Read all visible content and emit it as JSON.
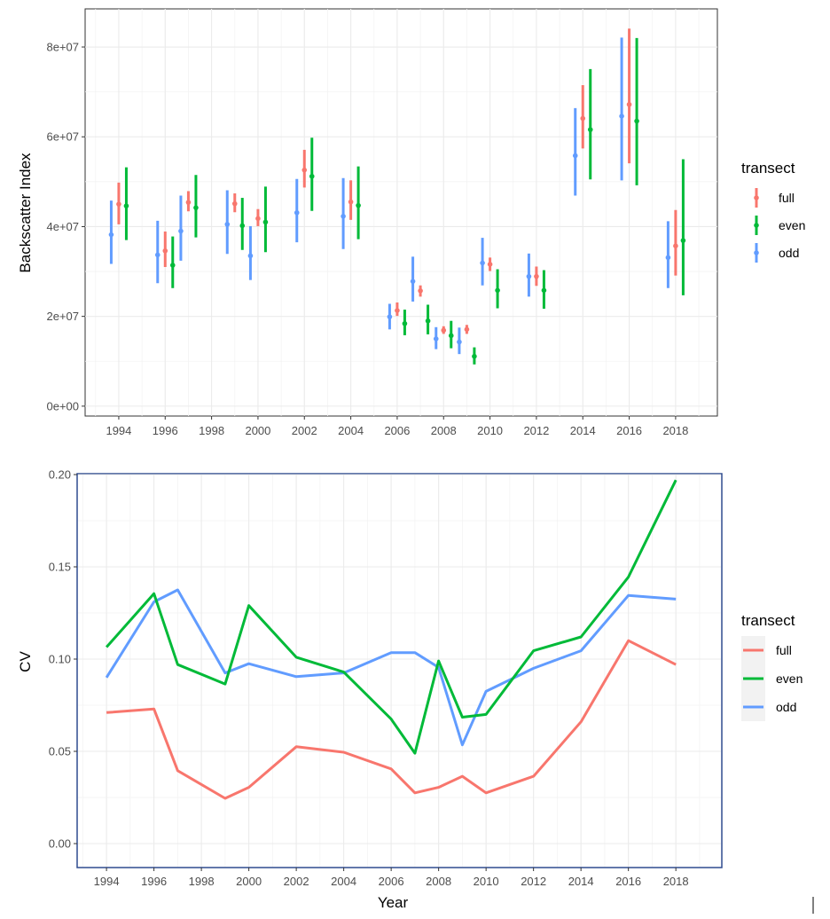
{
  "chart_data": [
    {
      "type": "scatter",
      "subtype": "pointrange",
      "xlabel": "",
      "ylabel": "Backscatter Index",
      "x_ticks": [
        "1994",
        "1996",
        "1998",
        "2000",
        "2002",
        "2004",
        "2006",
        "2008",
        "2010",
        "2012",
        "2014",
        "2016",
        "2018"
      ],
      "y_ticks": [
        "0e+00",
        "2e+07",
        "4e+07",
        "6e+07",
        "8e+07"
      ],
      "y_tick_values": [
        0,
        20000000,
        40000000,
        60000000,
        80000000
      ],
      "xlim": [
        1992.55,
        2019.8
      ],
      "ylim": [
        -2200000,
        88500000
      ],
      "grid": true,
      "legend": {
        "title": "transect",
        "placement": "right",
        "entries": [
          "full",
          "even",
          "odd"
        ]
      },
      "colors": {
        "full": "#f8766d",
        "even": "#00ba38",
        "odd": "#619cff"
      },
      "series": [
        {
          "name": "full",
          "points": [
            {
              "x": 1994,
              "y": 45000000,
              "lo": 40500000,
              "hi": 49800000
            },
            {
              "x": 1996,
              "y": 34600000,
              "lo": 31000000,
              "hi": 38900000
            },
            {
              "x": 1997,
              "y": 45400000,
              "lo": 43400000,
              "hi": 47900000
            },
            {
              "x": 1999,
              "y": 45100000,
              "lo": 43200000,
              "hi": 47400000
            },
            {
              "x": 2000,
              "y": 41800000,
              "lo": 40100000,
              "hi": 43900000
            },
            {
              "x": 2002,
              "y": 52600000,
              "lo": 48700000,
              "hi": 57100000
            },
            {
              "x": 2004,
              "y": 45500000,
              "lo": 41500000,
              "hi": 50300000
            },
            {
              "x": 2006,
              "y": 21300000,
              "lo": 20100000,
              "hi": 23100000
            },
            {
              "x": 2007,
              "y": 25700000,
              "lo": 24400000,
              "hi": 26900000
            },
            {
              "x": 2008,
              "y": 16900000,
              "lo": 16100000,
              "hi": 17800000
            },
            {
              "x": 2009,
              "y": 17100000,
              "lo": 16100000,
              "hi": 18100000
            },
            {
              "x": 2010,
              "y": 31600000,
              "lo": 30100000,
              "hi": 33100000
            },
            {
              "x": 2012,
              "y": 28900000,
              "lo": 26800000,
              "hi": 31100000
            },
            {
              "x": 2014,
              "y": 64100000,
              "lo": 57400000,
              "hi": 71500000
            },
            {
              "x": 2016,
              "y": 67200000,
              "lo": 54100000,
              "hi": 84100000
            },
            {
              "x": 2018,
              "y": 35700000,
              "lo": 29100000,
              "hi": 43700000
            }
          ]
        },
        {
          "name": "even",
          "points": [
            {
              "x": 1994,
              "y": 44600000,
              "lo": 37000000,
              "hi": 53200000
            },
            {
              "x": 1996,
              "y": 31400000,
              "lo": 26300000,
              "hi": 37800000
            },
            {
              "x": 1997,
              "y": 44200000,
              "lo": 37600000,
              "hi": 51500000
            },
            {
              "x": 1999,
              "y": 40200000,
              "lo": 34800000,
              "hi": 46400000
            },
            {
              "x": 2000,
              "y": 41000000,
              "lo": 34300000,
              "hi": 48900000
            },
            {
              "x": 2002,
              "y": 51200000,
              "lo": 43500000,
              "hi": 59800000
            },
            {
              "x": 2004,
              "y": 44700000,
              "lo": 37200000,
              "hi": 53400000
            },
            {
              "x": 2006,
              "y": 18400000,
              "lo": 15800000,
              "hi": 21500000
            },
            {
              "x": 2007,
              "y": 19000000,
              "lo": 16000000,
              "hi": 22600000
            },
            {
              "x": 2008,
              "y": 15700000,
              "lo": 12900000,
              "hi": 19000000
            },
            {
              "x": 2009,
              "y": 11100000,
              "lo": 9300000,
              "hi": 13100000
            },
            {
              "x": 2010,
              "y": 25800000,
              "lo": 21800000,
              "hi": 30500000
            },
            {
              "x": 2012,
              "y": 25800000,
              "lo": 21700000,
              "hi": 30300000
            },
            {
              "x": 2014,
              "y": 61600000,
              "lo": 50500000,
              "hi": 75100000
            },
            {
              "x": 2016,
              "y": 63500000,
              "lo": 49200000,
              "hi": 82000000
            },
            {
              "x": 2018,
              "y": 36900000,
              "lo": 24700000,
              "hi": 55000000
            }
          ]
        },
        {
          "name": "odd",
          "points": [
            {
              "x": 1994,
              "y": 38200000,
              "lo": 31700000,
              "hi": 45800000
            },
            {
              "x": 1996,
              "y": 33700000,
              "lo": 27400000,
              "hi": 41300000
            },
            {
              "x": 1997,
              "y": 39000000,
              "lo": 32400000,
              "hi": 46900000
            },
            {
              "x": 1999,
              "y": 40500000,
              "lo": 33900000,
              "hi": 48100000
            },
            {
              "x": 2000,
              "y": 33500000,
              "lo": 28100000,
              "hi": 40100000
            },
            {
              "x": 2002,
              "y": 43100000,
              "lo": 36500000,
              "hi": 50600000
            },
            {
              "x": 2004,
              "y": 42300000,
              "lo": 35000000,
              "hi": 50800000
            },
            {
              "x": 2006,
              "y": 19900000,
              "lo": 17100000,
              "hi": 22800000
            },
            {
              "x": 2007,
              "y": 27800000,
              "lo": 23300000,
              "hi": 33300000
            },
            {
              "x": 2008,
              "y": 15000000,
              "lo": 12700000,
              "hi": 17600000
            },
            {
              "x": 2009,
              "y": 14300000,
              "lo": 11600000,
              "hi": 17500000
            },
            {
              "x": 2010,
              "y": 31900000,
              "lo": 26900000,
              "hi": 37500000
            },
            {
              "x": 2012,
              "y": 28900000,
              "lo": 24400000,
              "hi": 34000000
            },
            {
              "x": 2014,
              "y": 55800000,
              "lo": 46900000,
              "hi": 66400000
            },
            {
              "x": 2016,
              "y": 64600000,
              "lo": 50300000,
              "hi": 82100000
            },
            {
              "x": 2018,
              "y": 33100000,
              "lo": 26300000,
              "hi": 41200000
            }
          ]
        }
      ]
    },
    {
      "type": "line",
      "xlabel": "Year",
      "ylabel": "CV",
      "x_ticks": [
        "1994",
        "1996",
        "1998",
        "2000",
        "2002",
        "2004",
        "2006",
        "2008",
        "2010",
        "2012",
        "2014",
        "2016",
        "2018"
      ],
      "y_ticks": [
        "0.00",
        "0.05",
        "0.10",
        "0.15",
        "0.20"
      ],
      "y_tick_values": [
        0,
        0.05,
        0.1,
        0.15,
        0.2
      ],
      "xlim": [
        1992.8,
        2019.9
      ],
      "ylim": [
        -0.0125,
        0.2
      ],
      "grid": true,
      "legend": {
        "title": "transect",
        "placement": "right",
        "entries": [
          "full",
          "even",
          "odd"
        ]
      },
      "colors": {
        "full": "#f8766d",
        "even": "#00ba38",
        "odd": "#619cff"
      },
      "x": [
        1994,
        1996,
        1997,
        1999,
        2000,
        2002,
        2004,
        2006,
        2007,
        2008,
        2009,
        2010,
        2012,
        2014,
        2016,
        2018
      ],
      "series": [
        {
          "name": "full",
          "values": [
            0.071,
            0.073,
            0.0395,
            0.0245,
            0.0305,
            0.0525,
            0.0495,
            0.0405,
            0.0275,
            0.0305,
            0.0365,
            0.0275,
            0.0365,
            0.066,
            0.11,
            0.097
          ]
        },
        {
          "name": "even",
          "values": [
            0.1065,
            0.1355,
            0.097,
            0.0865,
            0.129,
            0.101,
            0.093,
            0.0675,
            0.049,
            0.099,
            0.0685,
            0.07,
            0.1045,
            0.112,
            0.1445,
            0.197
          ]
        },
        {
          "name": "odd",
          "values": [
            0.09,
            0.131,
            0.1375,
            0.0925,
            0.0975,
            0.0905,
            0.0925,
            0.1035,
            0.1035,
            0.0955,
            0.0535,
            0.0825,
            0.095,
            0.1045,
            0.1345,
            0.1325
          ]
        }
      ]
    }
  ]
}
